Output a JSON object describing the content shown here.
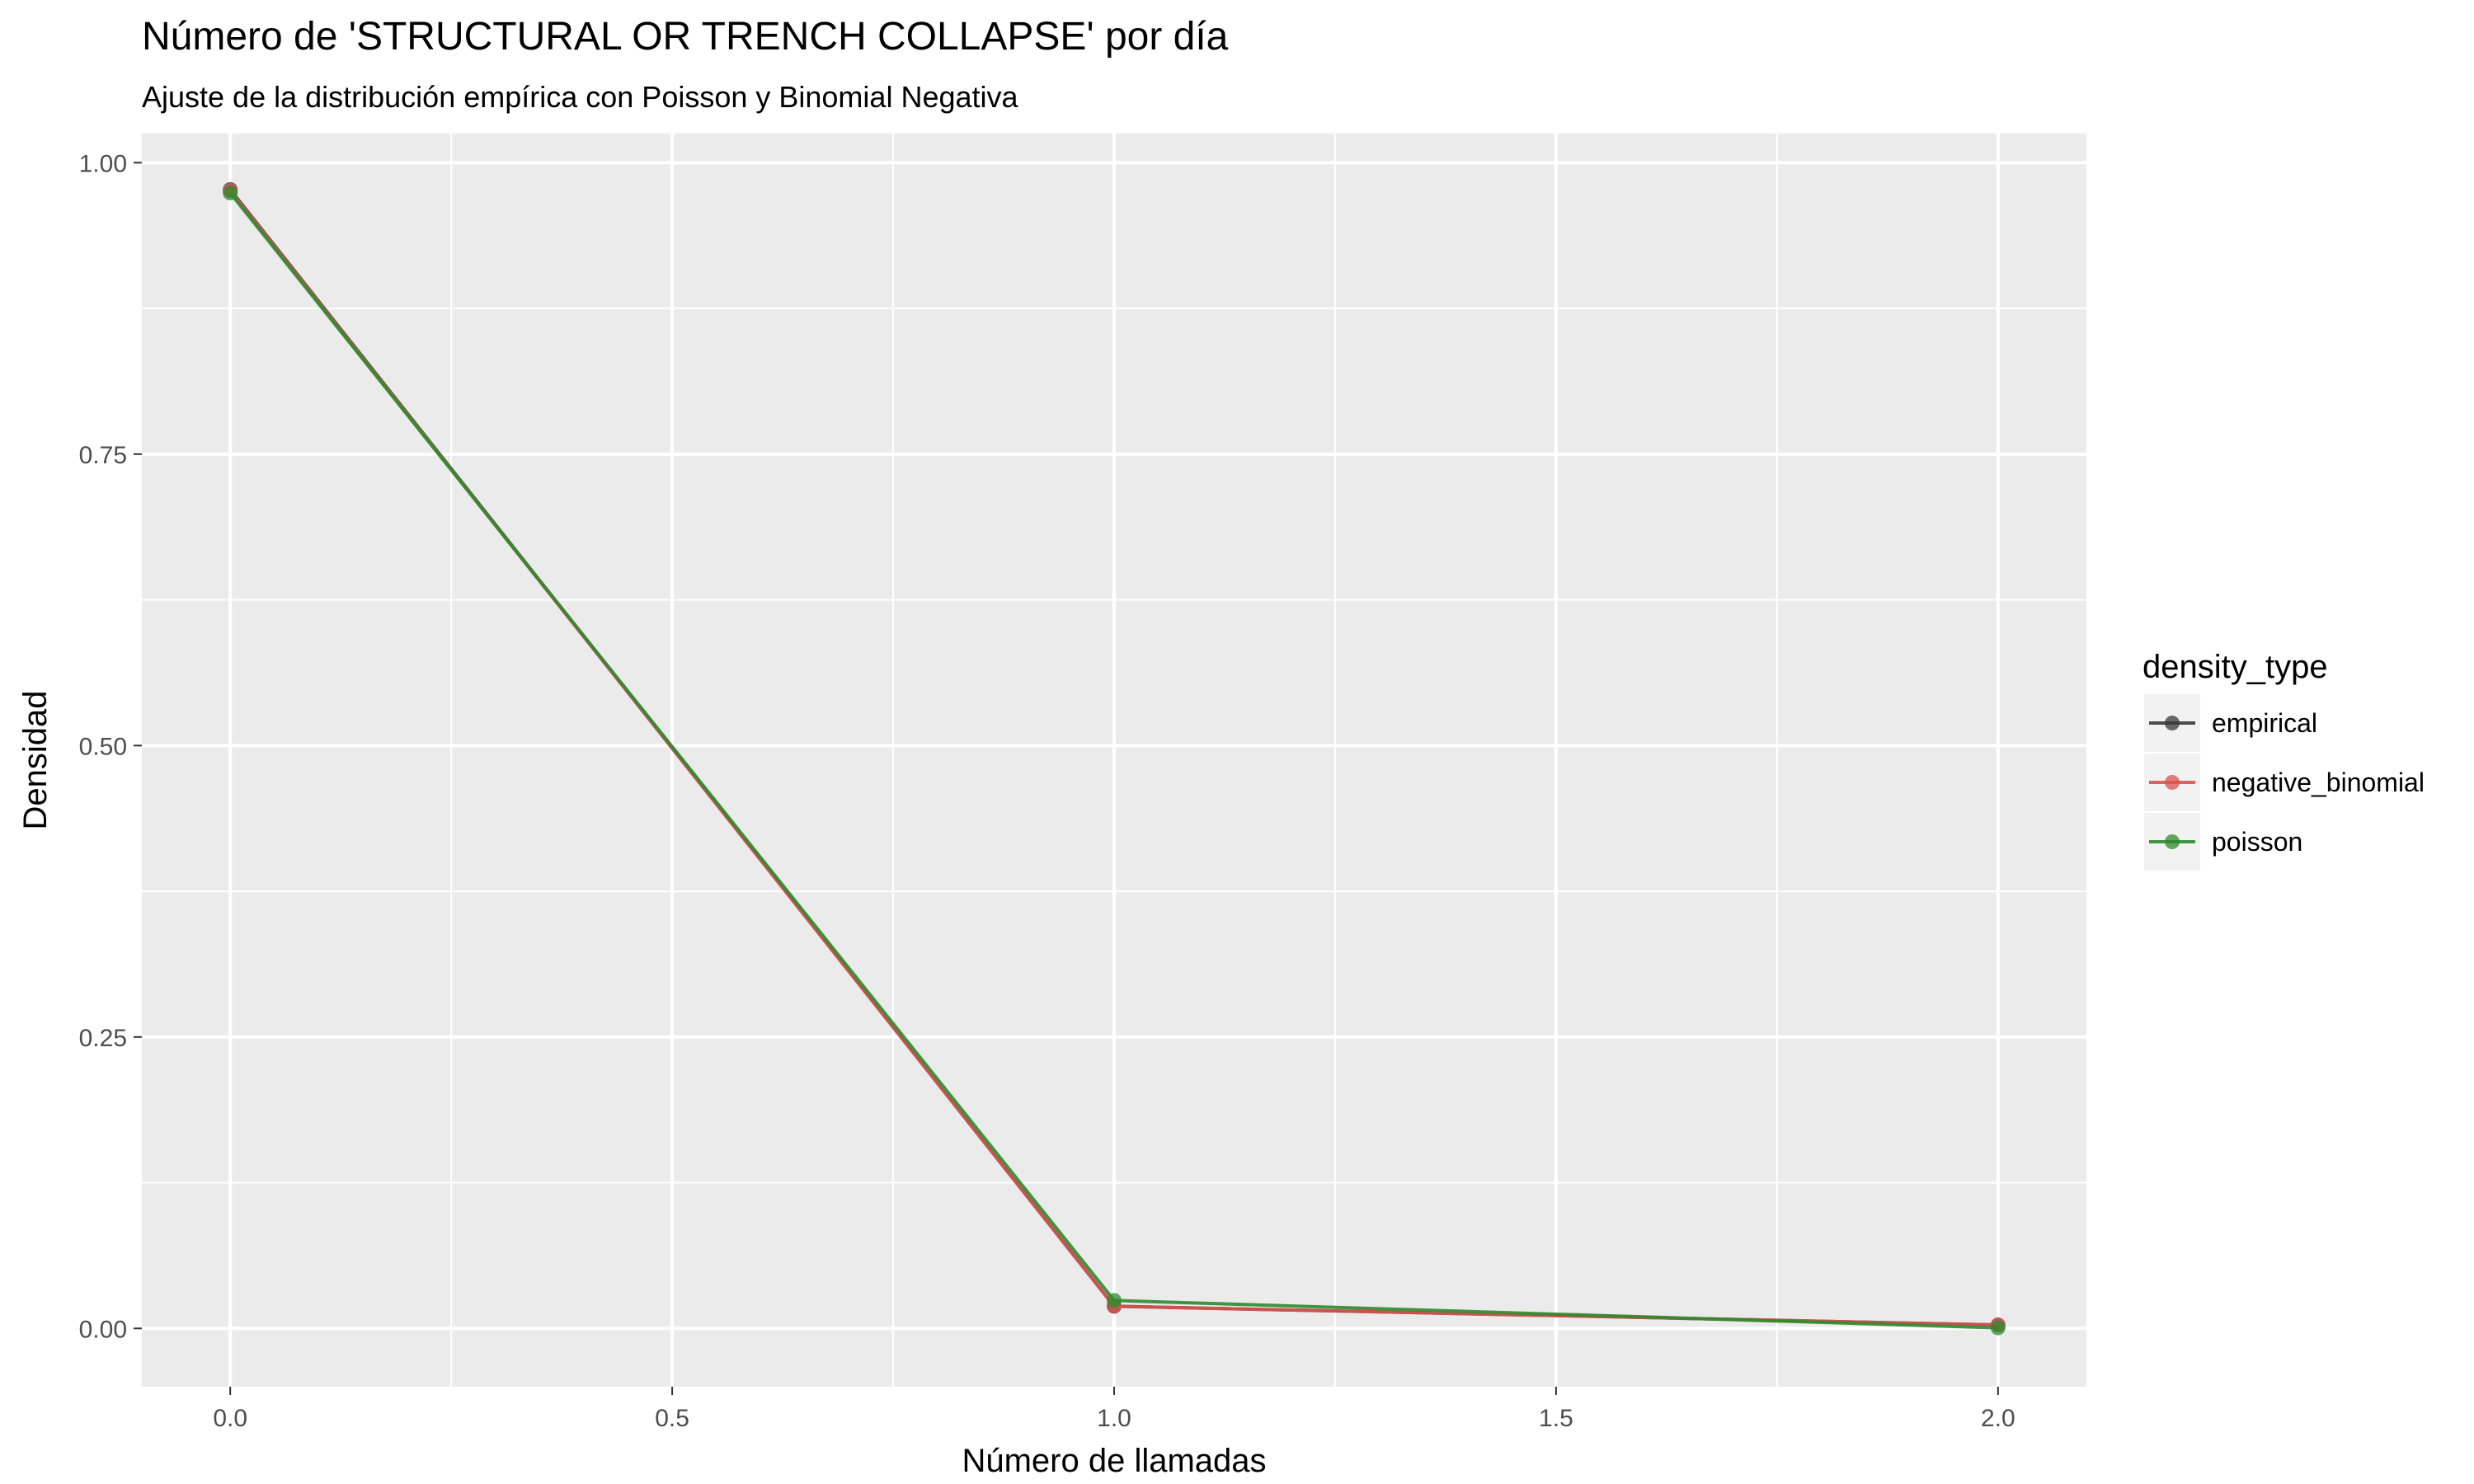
{
  "chart_data": {
    "type": "line",
    "title": "Número de 'STRUCTURAL OR TRENCH COLLAPSE' por día",
    "subtitle": "Ajuste de la distribución empírica con Poisson y Binomial Negativa",
    "xlabel": "Número de llamadas",
    "ylabel": "Densidad",
    "xlim": [
      -0.1,
      2.1
    ],
    "ylim": [
      -0.05,
      1.025
    ],
    "x_ticks": [
      "0.0",
      "0.5",
      "1.0",
      "1.5",
      "2.0"
    ],
    "y_ticks": [
      "0.00",
      "0.25",
      "0.50",
      "0.75",
      "1.00"
    ],
    "grid": true,
    "x": [
      0,
      1,
      2
    ],
    "series": [
      {
        "name": "empirical",
        "color": "#3a3a3a",
        "values": [
          0.977,
          0.019,
          0.003
        ]
      },
      {
        "name": "negative_binomial",
        "color": "#d9534f",
        "values": [
          0.976,
          0.019,
          0.003
        ]
      },
      {
        "name": "poisson",
        "color": "#2e8b2e",
        "values": [
          0.974,
          0.024,
          0.0005
        ]
      }
    ],
    "legend": {
      "title": "density_type",
      "position": "right"
    }
  }
}
